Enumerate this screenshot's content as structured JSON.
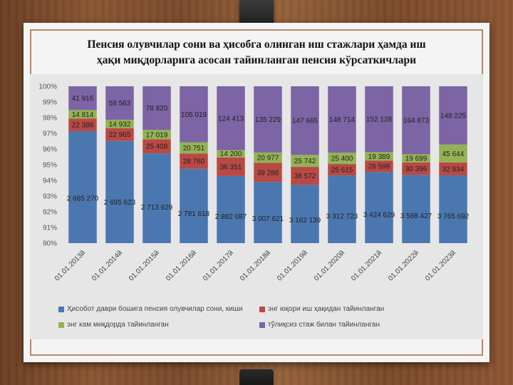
{
  "title_line1": "Пенсия олувчилар сони ва ҳисобга олинган иш стажлари ҳамда иш",
  "title_line2": "ҳақи миқдорларига асосан тайинланган пенсия кўрсаткичлари",
  "colors": {
    "blue": "#4a77b0",
    "red": "#b84944",
    "green": "#94b254",
    "purple": "#7d64a4",
    "title_band": "#e6e6e6",
    "paper_border": "#b9876a"
  },
  "legend": [
    {
      "label": "Ҳисобот даври бошига пенсия олувчилар сони, киши",
      "color": "#4a77b0"
    },
    {
      "label": "энг юқори иш ҳақидан тайинланган",
      "color": "#b84944"
    },
    {
      "label": "энг кам миқдорда тайинланган",
      "color": "#94b254"
    },
    {
      "label": "тўлиқсиз стаж билан тайинланган",
      "color": "#7d64a4"
    }
  ],
  "chart_data": {
    "type": "bar",
    "stacked": "percent",
    "ylim": [
      90,
      100
    ],
    "y_ticks": [
      "90%",
      "91%",
      "92%",
      "93%",
      "94%",
      "95%",
      "96%",
      "97%",
      "98%",
      "99%",
      "100%"
    ],
    "categories": [
      "01.01.2013й",
      "01.01.2014й",
      "01.01.2015й",
      "01.01.2016й",
      "01.01.2017й",
      "01.01.2018й",
      "01.01.2019й",
      "01.01.2020й",
      "01.01.2021й",
      "01.01.2022й",
      "01.01.2023й"
    ],
    "series": [
      {
        "name": "Ҳисобот даври бошига пенсия олувчилар сони, киши",
        "values": [
          2685270,
          2695623,
          2713929,
          2781618,
          2882087,
          3007621,
          3162139,
          3312723,
          3424629,
          3588427,
          3765692
        ],
        "labels": [
          "2 685 270",
          "2 695 623",
          "2 713 929",
          "2 781 618",
          "2 882 087",
          "3 007 621",
          "3 162 139",
          "3 312 723",
          "3 424 629",
          "3 588 427",
          "3 765 692"
        ]
      },
      {
        "name": "энг юқори иш ҳақидан тайинланган",
        "values": [
          22388,
          22965,
          25408,
          28760,
          36351,
          39286,
          38572,
          25615,
          26598,
          30396,
          32934
        ],
        "labels": [
          "22 388",
          "22 965",
          "25 408",
          "28 760",
          "36 351",
          "39 286",
          "38 572",
          "25 615",
          "26 598",
          "30 396",
          "32 934"
        ]
      },
      {
        "name": "энг кам миқдорда тайинланган",
        "values": [
          14814,
          14932,
          17019,
          20751,
          14200,
          20977,
          25742,
          25400,
          19389,
          19699,
          45644
        ],
        "labels": [
          "14 814",
          "14 932",
          "17 019",
          "20 751",
          "14 200",
          "20 977",
          "25 742",
          "25 400",
          "19 389",
          "19 699",
          "45 644"
        ]
      },
      {
        "name": "тўлиқсиз стаж билан тайинланган",
        "values": [
          41916,
          59563,
          78820,
          105019,
          124413,
          135229,
          147665,
          148714,
          152128,
          164873,
          148225
        ],
        "labels": [
          "41 916",
          "59 563",
          "78 820",
          "105 019",
          "124 413",
          "135 229",
          "147 665",
          "148 714",
          "152 128",
          "164 873",
          "148 225"
        ]
      }
    ]
  }
}
